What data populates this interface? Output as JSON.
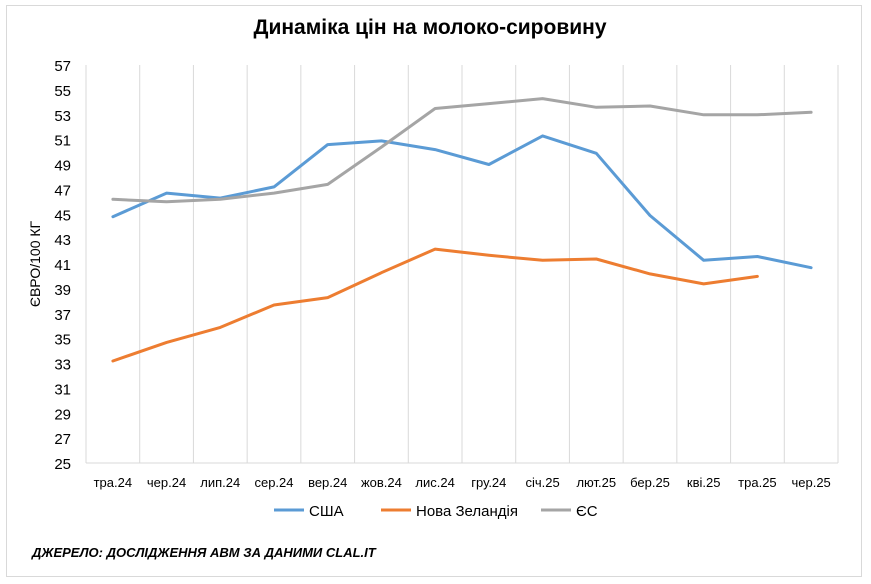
{
  "chart_data": {
    "type": "line",
    "title": "Динаміка цін на молоко-сировину",
    "ylabel": "ЄВРО/100 КГ",
    "xlabel": "",
    "ylim": [
      25,
      57
    ],
    "ytick_step": 2,
    "grid": "vertical",
    "legend_position": "bottom",
    "categories": [
      "тра.24",
      "чер.24",
      "лип.24",
      "сер.24",
      "вер.24",
      "жов.24",
      "лис.24",
      "гру.24",
      "січ.25",
      "лют.25",
      "бер.25",
      "кві.25",
      "тра.25",
      "чер.25"
    ],
    "series": [
      {
        "name": "США",
        "color": "#5b9bd5",
        "values": [
          44.8,
          46.7,
          46.3,
          47.2,
          50.6,
          50.9,
          50.2,
          49.0,
          51.3,
          49.9,
          44.9,
          41.3,
          41.6,
          40.7
        ]
      },
      {
        "name": "Нова Зеландія",
        "color": "#ed7d31",
        "values": [
          33.2,
          34.7,
          35.9,
          37.7,
          38.3,
          40.3,
          42.2,
          41.7,
          41.3,
          41.4,
          40.2,
          39.4,
          40.0,
          null
        ]
      },
      {
        "name": "ЄС",
        "color": "#a5a5a5",
        "values": [
          46.2,
          46.0,
          46.2,
          46.7,
          47.4,
          50.4,
          53.5,
          53.9,
          54.3,
          53.6,
          53.7,
          53.0,
          53.0,
          53.2
        ]
      }
    ]
  },
  "source": "ДЖЕРЕЛО: ДОСЛІДЖЕННЯ АВМ ЗА ДАНИМИ CLAL.IT"
}
